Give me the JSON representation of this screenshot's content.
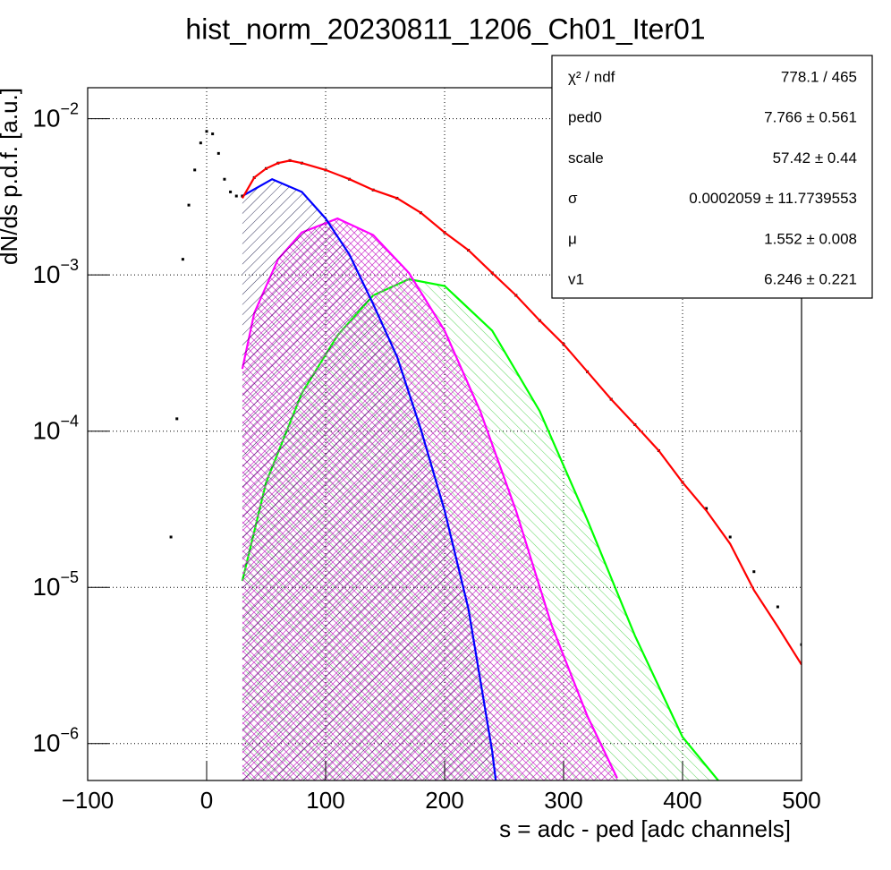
{
  "chart_data": {
    "type": "line",
    "title": "hist_norm_20230811_1206_Ch01_Iter01",
    "xlabel": "s = adc - ped [adc channels]",
    "ylabel": "dN/ds p.d.f. [a.u.]",
    "log_y": true,
    "grid": true,
    "xlim": [
      -100,
      500
    ],
    "ylim": [
      0.0158,
      5.8e-07
    ],
    "xticks": [
      {
        "value": -100,
        "label": "−100"
      },
      0,
      100,
      200,
      300,
      400,
      500
    ],
    "yticks": [
      {
        "value": 0.01,
        "label": "10",
        "exponent": "−2"
      },
      {
        "value": 0.001,
        "label": "10",
        "exponent": "−3"
      },
      {
        "value": 0.0001,
        "label": "10",
        "exponent": "−4"
      },
      {
        "value": 1e-05,
        "label": "10",
        "exponent": "−5"
      },
      {
        "value": 1e-06,
        "label": "10",
        "exponent": "−6"
      }
    ],
    "series": [
      {
        "color": "#000000",
        "style": "points",
        "x": [
          -30,
          -25,
          -20,
          -15,
          -10,
          -5,
          0,
          5,
          10,
          15,
          20,
          25,
          30,
          40,
          50,
          60,
          70,
          80,
          100,
          120,
          140,
          160,
          180,
          200,
          220,
          240,
          260,
          280,
          300,
          320,
          340,
          360,
          380,
          400,
          420,
          440,
          460,
          480,
          500
        ],
        "values": [
          2.1e-05,
          0.00012,
          0.00126,
          0.0028,
          0.0047,
          0.007,
          0.0083,
          0.008,
          0.006,
          0.0041,
          0.0034,
          0.0032,
          0.0032,
          0.0042,
          0.0048,
          0.0052,
          0.0054,
          0.0052,
          0.0047,
          0.0041,
          0.0035,
          0.0031,
          0.0025,
          0.00187,
          0.00144,
          0.00103,
          0.00074,
          0.00051,
          0.00036,
          0.00024,
          0.00016,
          0.00011,
          7.5e-05,
          4.7e-05,
          3.2e-05,
          2.1e-05,
          1.26e-05,
          7.5e-06,
          4.3e-06
        ]
      },
      {
        "color": "#ff0000",
        "style": "line",
        "x": [
          30,
          40,
          50,
          60,
          70,
          80,
          100,
          120,
          140,
          160,
          180,
          200,
          220,
          240,
          260,
          280,
          300,
          320,
          340,
          360,
          380,
          400,
          420,
          440,
          460,
          480,
          500
        ],
        "values": [
          0.0031,
          0.0042,
          0.0048,
          0.0052,
          0.0054,
          0.0052,
          0.0047,
          0.0041,
          0.0035,
          0.0031,
          0.0025,
          0.00187,
          0.00144,
          0.00103,
          0.00074,
          0.00051,
          0.00036,
          0.00024,
          0.00016,
          0.00011,
          7.5e-05,
          4.7e-05,
          3.1e-05,
          1.9e-05,
          9.6e-06,
          5.6e-06,
          3.2e-06
        ]
      },
      {
        "color": "#0000ff",
        "style": "fill",
        "hatch": "blue",
        "x": [
          30,
          55,
          80,
          100,
          120,
          140,
          160,
          180,
          200,
          220,
          240,
          243
        ],
        "values": [
          0.0032,
          0.0041,
          0.0034,
          0.0023,
          0.00135,
          0.00065,
          0.0003,
          0.000103,
          3.1e-05,
          7.3e-06,
          8.9e-07,
          5.8e-07
        ]
      },
      {
        "color": "#ff00ff",
        "style": "fill",
        "hatch": "magenta",
        "x": [
          30,
          40,
          60,
          80,
          110,
          140,
          170,
          200,
          230,
          260,
          290,
          320,
          345
        ],
        "values": [
          0.00025,
          0.00057,
          0.00126,
          0.00187,
          0.0023,
          0.0018,
          0.00103,
          0.00044,
          0.000134,
          3.1e-05,
          5.7e-06,
          1.5e-06,
          6e-07
        ]
      },
      {
        "color": "#00ff00",
        "style": "fill",
        "hatch": "green",
        "x": [
          30,
          50,
          80,
          110,
          140,
          170,
          200,
          240,
          280,
          320,
          360,
          400,
          430
        ],
        "values": [
          1.1e-05,
          4.7e-05,
          0.000175,
          0.00041,
          0.00074,
          0.00094,
          0.00085,
          0.00044,
          0.000134,
          2.7e-05,
          4.9e-06,
          1.1e-06,
          5.8e-07
        ]
      }
    ],
    "stats": [
      {
        "name": "χ² / ndf",
        "value": "778.1 / 465"
      },
      {
        "name": "ped0",
        "value": "7.766 ± 0.561"
      },
      {
        "name": "scale",
        "value": "57.42 ± 0.44"
      },
      {
        "name": "σ",
        "value": "0.0002059 ± 11.7739553"
      },
      {
        "name": "μ",
        "value": "1.552 ± 0.008"
      },
      {
        "name": "v1",
        "value": "6.246 ± 0.221"
      }
    ]
  }
}
